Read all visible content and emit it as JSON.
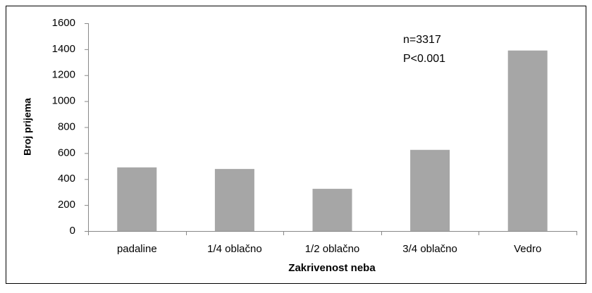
{
  "chart_data": {
    "type": "bar",
    "categories": [
      "padaline",
      "1/4 oblačno",
      "1/2 oblačno",
      "3/4 oblačno",
      "Vedro"
    ],
    "values": [
      490,
      478,
      325,
      625,
      1390
    ],
    "color": "#a6a6a6",
    "xlabel": "Zakrivenost neba",
    "ylabel": "Broj prijema",
    "annotations": [
      "n=3317",
      "P<0.001"
    ],
    "ylim": [
      0,
      1600
    ],
    "yticks": [
      0,
      200,
      400,
      600,
      800,
      1000,
      1200,
      1400,
      1600
    ],
    "grid": false
  }
}
